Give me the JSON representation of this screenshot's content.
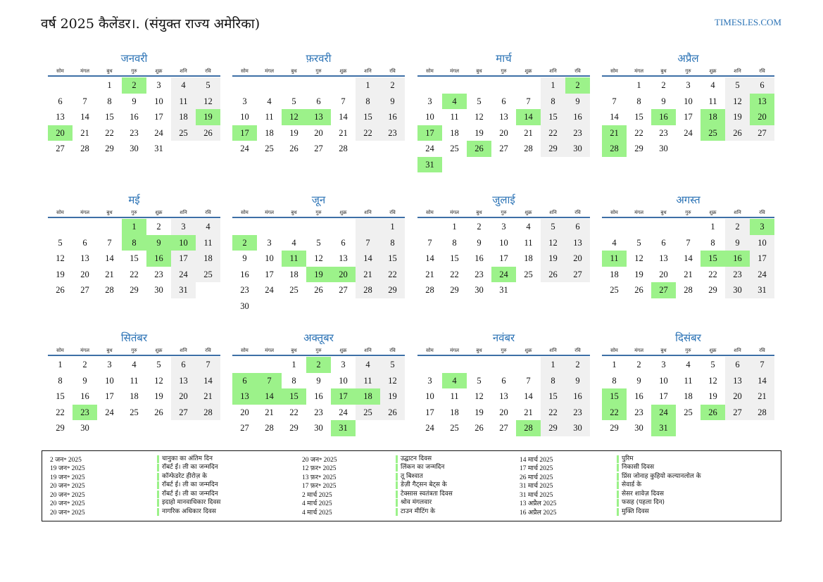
{
  "header": {
    "title": "वर्ष 2025 कैलेंडर।. (संयुक्त राज्य अमेरिका)",
    "site": "TIMESLES.COM"
  },
  "colors": {
    "accent": "#2a72b5",
    "holiday": "#9cf28a",
    "weekend": "#f0f0f0",
    "rule": "#3d6fa6"
  },
  "weekdays": [
    "सोम",
    "मंगल",
    "बुध",
    "गुरु",
    "शुक्र",
    "शनि",
    "रवि"
  ],
  "months": [
    {
      "name": "जनवरी",
      "offset": 2,
      "days": 31,
      "holidays": [
        2,
        19,
        20
      ]
    },
    {
      "name": "फ़रवरी",
      "offset": 5,
      "days": 28,
      "holidays": [
        12,
        13,
        17
      ]
    },
    {
      "name": "मार्च",
      "offset": 5,
      "days": 31,
      "holidays": [
        2,
        4,
        14,
        17,
        26,
        31
      ]
    },
    {
      "name": "अप्रैल",
      "offset": 1,
      "days": 30,
      "holidays": [
        13,
        16,
        18,
        20,
        21,
        25,
        28
      ]
    },
    {
      "name": "मई",
      "offset": 3,
      "days": 31,
      "holidays": [
        1,
        8,
        9,
        10,
        16
      ]
    },
    {
      "name": "जून",
      "offset": 6,
      "days": 30,
      "holidays": [
        2,
        11,
        19,
        20
      ]
    },
    {
      "name": "जुलाई",
      "offset": 1,
      "days": 31,
      "holidays": [
        24
      ]
    },
    {
      "name": "अगस्त",
      "offset": 4,
      "days": 31,
      "holidays": [
        3,
        11,
        15,
        16,
        27
      ]
    },
    {
      "name": "सितंबर",
      "offset": 0,
      "days": 30,
      "holidays": [
        23
      ]
    },
    {
      "name": "अक्तूबर",
      "offset": 2,
      "days": 31,
      "holidays": [
        2,
        6,
        7,
        13,
        14,
        15,
        17,
        18,
        31
      ]
    },
    {
      "name": "नवंबर",
      "offset": 5,
      "days": 30,
      "holidays": [
        4,
        28
      ]
    },
    {
      "name": "दिसंबर",
      "offset": 0,
      "days": 31,
      "holidays": [
        15,
        22,
        24,
        26,
        31
      ]
    }
  ],
  "holiday_list": [
    [
      {
        "date": "2 जन॰ 2025",
        "name": "चानुका का अंतिम दिन"
      },
      {
        "date": "19 जन॰ 2025",
        "name": "रॉबर्ट ई। ली का जन्मदिन"
      },
      {
        "date": "19 जन॰ 2025",
        "name": "कॉन्फेडरेट हीरोज़ के"
      },
      {
        "date": "20 जन॰ 2025",
        "name": "रॉबर्ट ई। ली का जन्मदिन"
      },
      {
        "date": "20 जन॰ 2025",
        "name": "रॉबर्ट ई। ली का जन्मदिन"
      },
      {
        "date": "20 जन॰ 2025",
        "name": "इदाहो मानवाधिकार दिवस"
      },
      {
        "date": "20 जन॰ 2025",
        "name": "नागरिक अधिकार दिवस"
      }
    ],
    [
      {
        "date": "20 जन॰ 2025",
        "name": "उद्घाटन दिवस"
      },
      {
        "date": "12 फ़र॰ 2025",
        "name": "लिंकन का जन्मदिन"
      },
      {
        "date": "13 फ़र॰ 2025",
        "name": "तू बिश्वात"
      },
      {
        "date": "17 फ़र॰ 2025",
        "name": "डेज़ी गैट्सन बेट्स के"
      },
      {
        "date": "2 मार्च 2025",
        "name": "टेक्सास स्वतंत्रता दिवस"
      },
      {
        "date": "4 मार्च 2025",
        "name": "श्रोव मंगलवार"
      },
      {
        "date": "4 मार्च 2025",
        "name": "टाउन मीटिंग के"
      }
    ],
    [
      {
        "date": "14 मार्च 2025",
        "name": "पुरिम"
      },
      {
        "date": "17 मार्च 2025",
        "name": "निकासी दिवस"
      },
      {
        "date": "26 मार्च 2025",
        "name": "प्रिंस जोनाह कुहियो कल्यानलोल के"
      },
      {
        "date": "31 मार्च 2025",
        "name": "सेवार्ड के"
      },
      {
        "date": "31 मार्च 2025",
        "name": "सेसर शावेज़ दिवस"
      },
      {
        "date": "13 अप्रैल 2025",
        "name": "फसह (पहला दिन)"
      },
      {
        "date": "16 अप्रैल 2025",
        "name": "मुक्ति दिवस"
      }
    ]
  ]
}
